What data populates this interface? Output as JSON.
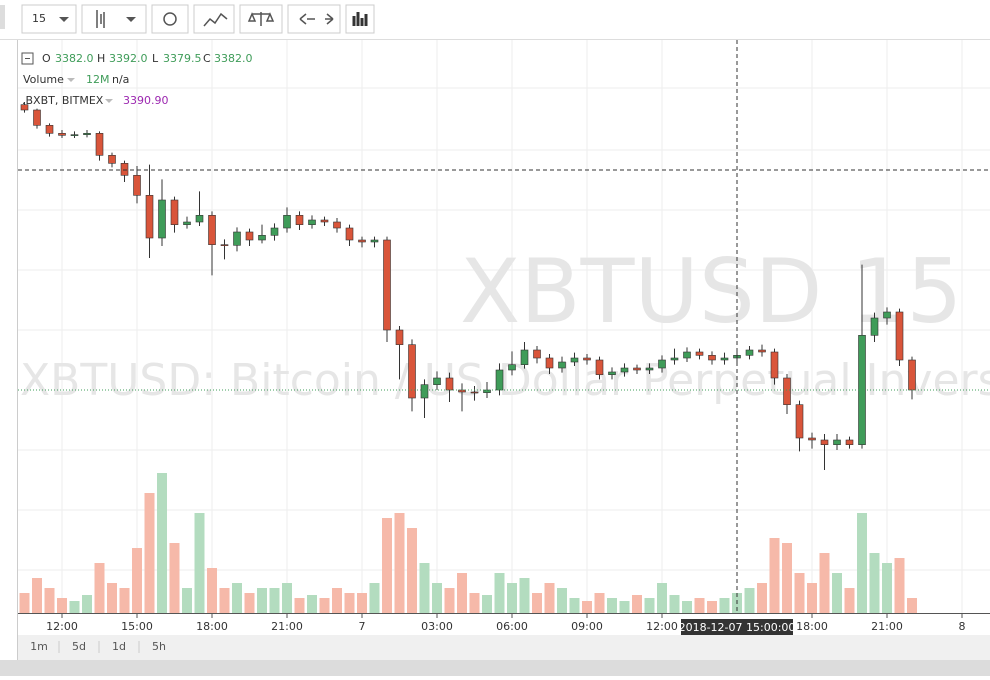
{
  "toolbar": {
    "interval": "15"
  },
  "legend": {
    "open_label": "O",
    "open": "3382.0",
    "high_label": "H",
    "high": "3392.0",
    "low_label": "L",
    "low": "3379.5",
    "close_label": "C",
    "close": "3382.0",
    "volume_label": "Volume",
    "volume_period": "12M",
    "volume_value": "n/a",
    "index_label": ".BXBT, BITMEX",
    "index_value": "3390.90"
  },
  "watermark": {
    "symbol": "XBTUSD 15",
    "description": "XBTUSD: Bitcoin / US Dollar Perpetual Inverse Swap Contract"
  },
  "range_buttons": [
    "1m",
    "5d",
    "1d",
    "5h"
  ],
  "chart_data": {
    "type": "candlestick",
    "x": [
      10.5,
      11,
      11.5,
      12,
      12.5,
      13,
      13.5,
      14,
      14.5,
      15,
      15.5,
      16,
      16.5,
      17,
      17.5,
      18,
      18.5,
      19,
      19.5,
      20,
      20.5,
      21,
      21.5,
      22,
      22.5,
      23,
      23.5,
      24,
      24.5,
      25,
      25.5,
      26,
      26.5,
      27,
      27.5,
      28,
      28.5,
      29,
      29.5,
      30,
      30.5,
      31,
      31.5,
      32,
      32.5,
      33,
      33.5,
      34,
      34.5,
      35,
      35.5,
      36,
      36.5,
      37,
      37.5,
      38,
      38.5,
      39,
      39.5,
      40,
      40.5,
      41,
      41.5,
      42,
      42.5,
      43,
      43.5,
      44,
      44.5,
      45,
      45.5,
      46
    ],
    "open": [
      3596,
      3592,
      3580.5,
      3574.5,
      3573,
      3573.5,
      3574.5,
      3558,
      3552,
      3543,
      3528,
      3496,
      3524.5,
      3506,
      3508,
      3513,
      3491,
      3490.5,
      3500.5,
      3494.5,
      3498,
      3503.5,
      3513,
      3506,
      3509.5,
      3508,
      3503.5,
      3494.5,
      3493,
      3494.5,
      3427,
      3416,
      3376,
      3386,
      3391,
      3382,
      3380.5,
      3380,
      3382,
      3397,
      3401,
      3412,
      3406,
      3398.5,
      3403,
      3406,
      3404.5,
      3393.5,
      3395.5,
      3398.5,
      3397,
      3398.5,
      3404.5,
      3406,
      3410.5,
      3408,
      3404.5,
      3406,
      3408,
      3412,
      3410.5,
      3391,
      3371,
      3346,
      3344.5,
      3341,
      3344.5,
      3341,
      3423,
      3436,
      3440.5,
      3404.5
    ],
    "high": [
      3598,
      3593,
      3582,
      3577,
      3576,
      3577,
      3576,
      3560,
      3554,
      3550,
      3551,
      3540,
      3527,
      3512,
      3531,
      3516,
      3495,
      3504,
      3503,
      3506,
      3507,
      3519,
      3516,
      3513,
      3512,
      3511,
      3506,
      3497,
      3497,
      3497,
      3430,
      3420,
      3390,
      3396,
      3395,
      3387,
      3385,
      3388,
      3402,
      3411,
      3418,
      3415,
      3409,
      3407,
      3410,
      3409,
      3407,
      3399,
      3402,
      3401,
      3402,
      3408,
      3413,
      3414,
      3413,
      3411,
      3410,
      3412,
      3415,
      3416,
      3413,
      3394,
      3374,
      3350,
      3349,
      3349,
      3347,
      3476,
      3440,
      3444,
      3443,
      3407
    ],
    "low": [
      3590,
      3578,
      3572,
      3571,
      3571,
      3571.5,
      3554,
      3549,
      3538,
      3522,
      3481,
      3490,
      3500,
      3503,
      3505,
      3468,
      3480,
      3486,
      3490,
      3492,
      3494,
      3500,
      3502,
      3503,
      3505,
      3500,
      3490,
      3489,
      3489,
      3418,
      3390,
      3366,
      3361,
      3382,
      3373,
      3366,
      3374,
      3376,
      3378,
      3393,
      3398,
      3402,
      3394,
      3395,
      3400,
      3401,
      3390,
      3390,
      3392,
      3394,
      3394,
      3395,
      3401,
      3403,
      3405,
      3401,
      3401,
      3403,
      3405,
      3407,
      3386,
      3364,
      3336,
      3338,
      3322,
      3337,
      3338,
      3338,
      3418,
      3431,
      3400,
      3375
    ],
    "close": [
      3592,
      3580.5,
      3574.5,
      3573,
      3573.5,
      3574.5,
      3558,
      3552,
      3543,
      3528,
      3496,
      3524.5,
      3506,
      3508,
      3513,
      3491,
      3490.5,
      3500.5,
      3494.5,
      3498,
      3503.5,
      3513,
      3506,
      3509.5,
      3508,
      3503.5,
      3494.5,
      3493,
      3494.5,
      3427,
      3416,
      3376,
      3386,
      3391,
      3382,
      3380.5,
      3380,
      3382,
      3397,
      3401,
      3412,
      3406,
      3398.5,
      3403,
      3406,
      3404.5,
      3393.5,
      3395.5,
      3398.5,
      3397,
      3398.5,
      3404.5,
      3406,
      3410.5,
      3408,
      3404.5,
      3406,
      3408,
      3412,
      3410.5,
      3391,
      3371,
      3346,
      3344.5,
      3341,
      3344.5,
      3341,
      3423,
      3436,
      3440.5,
      3404.5,
      3382
    ],
    "volume": [
      20,
      35,
      25,
      15,
      12,
      18,
      50,
      30,
      25,
      65,
      120,
      140,
      70,
      25,
      100,
      45,
      25,
      30,
      20,
      25,
      25,
      30,
      15,
      18,
      15,
      25,
      20,
      20,
      30,
      95,
      100,
      85,
      50,
      30,
      25,
      40,
      20,
      18,
      40,
      30,
      35,
      20,
      30,
      25,
      15,
      12,
      20,
      15,
      12,
      18,
      15,
      30,
      18,
      12,
      15,
      12,
      15,
      20,
      25,
      30,
      75,
      70,
      40,
      30,
      60,
      40,
      25,
      100,
      60,
      50,
      55,
      15
    ],
    "up_color": "#3f9c59",
    "down_color": "#d9553a",
    "up_volume_color": "#b3dcbf",
    "down_volume_color": "#f6b9a9",
    "xlim": [
      10.24,
      49.12
    ],
    "ylim": [
      3214.75,
      3644.5
    ],
    "volume_lim": [
      0,
      140
    ],
    "xticks": [
      {
        "value": 12,
        "label": "12:00"
      },
      {
        "value": 15,
        "label": "15:00"
      },
      {
        "value": 18,
        "label": "18:00"
      },
      {
        "value": 21,
        "label": "21:00"
      },
      {
        "value": 24,
        "label": "7"
      },
      {
        "value": 27,
        "label": "03:00"
      },
      {
        "value": 30,
        "label": "06:00"
      },
      {
        "value": 33,
        "label": "09:00"
      },
      {
        "value": 36,
        "label": "12:00"
      },
      {
        "value": 42,
        "label": "18:00"
      },
      {
        "value": 45,
        "label": "21:00"
      },
      {
        "value": 48,
        "label": "8"
      }
    ],
    "grid": true,
    "crosshair": {
      "x": 39,
      "y": 3547,
      "label": "2018-12-07 15:00:00"
    }
  }
}
